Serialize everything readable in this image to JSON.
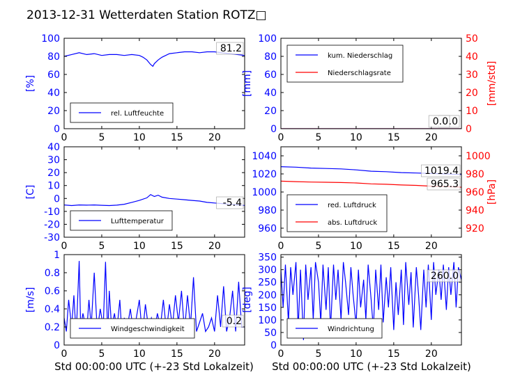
{
  "figure": {
    "title": "2013-12-31 Wetterdaten Station ROTZ□",
    "xlabel": "Std 00:00:00 UTC (+-23 Std Lokalzeit)"
  },
  "colors": {
    "primary": "#0000ff",
    "secondary": "#ff0000",
    "axis": "#000000"
  },
  "chart_data": [
    {
      "id": "humidity",
      "type": "line",
      "title": "",
      "xlabel": "",
      "ylabel": "[%]",
      "xlim": [
        0,
        24
      ],
      "ylim": [
        0,
        100
      ],
      "xticks": [
        0,
        5,
        10,
        15,
        20
      ],
      "yticks": [
        0,
        20,
        40,
        60,
        80,
        100
      ],
      "grid": false,
      "legend": "lower-left",
      "last_value_label": "81.2",
      "series": [
        {
          "name": "rel. Luftfeuchte",
          "color": "#0000ff",
          "x": [
            0,
            1,
            2,
            3,
            4,
            5,
            6,
            7,
            8,
            9,
            10,
            10.5,
            11,
            11.5,
            11.8,
            12,
            12.5,
            13,
            14,
            15,
            16,
            17,
            18,
            19,
            20,
            21,
            22,
            23,
            24
          ],
          "y": [
            80,
            82,
            84,
            82,
            83,
            81,
            82,
            82,
            81,
            82,
            81,
            79,
            76,
            71,
            69,
            72,
            76,
            79,
            83,
            84,
            85,
            85,
            84,
            85,
            85,
            84,
            83,
            82,
            81
          ]
        }
      ]
    },
    {
      "id": "precipitation",
      "type": "line",
      "title": "",
      "xlabel": "",
      "ylabel": "[mm]",
      "ylabel_right": "[mm/std]",
      "xlim": [
        0,
        24
      ],
      "ylim": [
        0,
        100
      ],
      "ylim_right": [
        0,
        50
      ],
      "xticks": [
        0,
        5,
        10,
        15,
        20
      ],
      "yticks": [
        0,
        20,
        40,
        60,
        80,
        100
      ],
      "yticks_right": [
        0,
        10,
        20,
        30,
        40,
        50
      ],
      "grid": false,
      "legend": "upper-left",
      "last_value_label": "0.0",
      "last_value_label_right": "0.0",
      "series": [
        {
          "name": "kum. Niederschlag",
          "color": "#0000ff",
          "axis": "left",
          "x": [
            0,
            24
          ],
          "y": [
            0,
            0
          ]
        },
        {
          "name": "Niederschlagsrate",
          "color": "#ff0000",
          "axis": "right",
          "x": [
            0,
            24
          ],
          "y": [
            0,
            0
          ]
        }
      ]
    },
    {
      "id": "temperature",
      "type": "line",
      "title": "",
      "xlabel": "",
      "ylabel": "[C]",
      "xlim": [
        0,
        24
      ],
      "ylim": [
        -30,
        40
      ],
      "xticks": [
        0,
        5,
        10,
        15,
        20
      ],
      "yticks": [
        -30,
        -20,
        -10,
        0,
        10,
        20,
        30,
        40
      ],
      "grid": false,
      "legend": "lower-left",
      "last_value_label": "-5.4",
      "series": [
        {
          "name": "Lufttemperatur",
          "color": "#0000ff",
          "x": [
            0,
            1,
            2,
            3,
            4,
            5,
            6,
            7,
            8,
            9,
            10,
            11,
            11.5,
            12,
            12.5,
            13,
            14,
            15,
            16,
            17,
            18,
            19,
            20,
            21,
            22,
            23,
            24
          ],
          "y": [
            -5,
            -5.5,
            -5,
            -5.2,
            -5,
            -5.3,
            -5.5,
            -5.2,
            -4.5,
            -3,
            -1.5,
            0.5,
            3,
            1.5,
            2.5,
            1,
            0,
            -0.5,
            -1,
            -1.5,
            -2,
            -3,
            -3.5,
            -4,
            -4.5,
            -5,
            -5.4
          ]
        }
      ]
    },
    {
      "id": "pressure",
      "type": "line",
      "title": "",
      "xlabel": "",
      "ylabel_right": "[hPa]",
      "xlim": [
        0,
        24
      ],
      "ylim": [
        950,
        1050
      ],
      "ylim_right": [
        910,
        1010
      ],
      "xticks": [
        0,
        5,
        10,
        15,
        20
      ],
      "yticks": [
        960,
        980,
        1000,
        1020,
        1040
      ],
      "yticks_right": [
        920,
        940,
        960,
        980,
        1000
      ],
      "grid": false,
      "legend": "lower-left",
      "last_value_label": "1019.4",
      "last_value_label_right": "965.3",
      "series": [
        {
          "name": "red. Luftdruck",
          "color": "#0000ff",
          "axis": "left",
          "x": [
            0,
            2,
            4,
            6,
            8,
            10,
            12,
            14,
            16,
            18,
            20,
            22,
            24
          ],
          "y": [
            1028,
            1027.5,
            1026.5,
            1026,
            1025.5,
            1024.5,
            1023,
            1022.5,
            1021.5,
            1021,
            1020.5,
            1020,
            1019.4
          ]
        },
        {
          "name": "abs. Luftdruck",
          "color": "#ff0000",
          "axis": "right",
          "x": [
            0,
            2,
            4,
            6,
            8,
            10,
            12,
            14,
            16,
            18,
            20,
            22,
            24
          ],
          "y": [
            972,
            971.5,
            971,
            970.8,
            970.5,
            970,
            969,
            968.5,
            967.8,
            967.3,
            966.5,
            966,
            965.3
          ]
        }
      ]
    },
    {
      "id": "wind-speed",
      "type": "line",
      "title": "",
      "xlabel": "",
      "ylabel": "[m/s]",
      "xlim": [
        0,
        24
      ],
      "ylim": [
        0,
        1.0
      ],
      "xticks": [
        0,
        5,
        10,
        15,
        20
      ],
      "yticks": [
        0,
        0.2,
        0.4,
        0.6,
        0.8,
        1.0
      ],
      "grid": false,
      "legend": "lower-center",
      "last_value_label": "0.2",
      "series": [
        {
          "name": "Windgeschwindigkeit",
          "color": "#0000ff",
          "x": [
            0,
            0.3,
            0.6,
            1,
            1.3,
            1.6,
            2,
            2.2,
            2.5,
            3,
            3.3,
            3.6,
            4,
            4.4,
            4.8,
            5.2,
            5.5,
            5.8,
            6,
            6.3,
            6.7,
            7,
            7.4,
            7.7,
            8,
            8.4,
            8.8,
            9.2,
            9.6,
            10,
            10.4,
            10.8,
            11.2,
            11.6,
            12,
            12.4,
            12.8,
            13.2,
            13.6,
            14,
            14.4,
            14.8,
            15.2,
            15.6,
            16,
            16.4,
            16.8,
            17.2,
            17.6,
            18,
            18.4,
            18.8,
            19.2,
            19.6,
            20,
            20.4,
            20.8,
            21.2,
            21.6,
            22,
            22.4,
            22.8,
            23.2,
            23.6,
            24
          ],
          "y": [
            0.3,
            0.15,
            0.5,
            0.2,
            0.55,
            0.1,
            0.93,
            0.2,
            0.35,
            0.15,
            0.5,
            0.2,
            0.8,
            0.15,
            0.4,
            0.2,
            0.92,
            0.1,
            0.6,
            0.2,
            0.35,
            0.15,
            0.5,
            0.1,
            0.3,
            0.2,
            0.4,
            0.15,
            0.3,
            0.5,
            0.1,
            0.45,
            0.2,
            0.3,
            0.15,
            0.35,
            0.2,
            0.5,
            0.15,
            0.45,
            0.2,
            0.55,
            0.25,
            0.6,
            0.15,
            0.55,
            0.2,
            0.75,
            0.15,
            0.25,
            0.35,
            0.15,
            0.2,
            0.3,
            0.15,
            0.55,
            0.2,
            0.65,
            0.15,
            0.3,
            0.6,
            0.15,
            0.7,
            0.2,
            0.2
          ]
        }
      ]
    },
    {
      "id": "wind-direction",
      "type": "line",
      "title": "",
      "xlabel": "",
      "ylabel": "[deg]",
      "xlim": [
        0,
        24
      ],
      "ylim": [
        0,
        360
      ],
      "xticks": [
        0,
        5,
        10,
        15,
        20
      ],
      "yticks": [
        0,
        50,
        100,
        150,
        200,
        250,
        300,
        350
      ],
      "grid": false,
      "legend": "lower-left",
      "last_value_label": "260.0",
      "series": [
        {
          "name": "Windrichtung",
          "color": "#0000ff",
          "x": [
            0,
            0.3,
            0.6,
            1,
            1.3,
            1.6,
            2,
            2.3,
            2.6,
            3,
            3.3,
            3.6,
            4,
            4.3,
            4.6,
            5,
            5.3,
            5.6,
            6,
            6.3,
            6.6,
            7,
            7.3,
            7.6,
            8,
            8.3,
            8.6,
            9,
            9.3,
            9.6,
            10,
            10.3,
            10.6,
            11,
            11.3,
            11.6,
            12,
            12.3,
            12.6,
            13,
            13.3,
            13.6,
            14,
            14.3,
            14.6,
            15,
            15.3,
            15.6,
            16,
            16.3,
            16.6,
            17,
            17.3,
            17.6,
            18,
            18.3,
            18.6,
            19,
            19.3,
            19.6,
            20,
            20.3,
            20.6,
            21,
            21.3,
            21.6,
            22,
            22.3,
            22.6,
            23,
            23.3,
            23.6,
            24
          ],
          "y": [
            300,
            150,
            320,
            90,
            310,
            200,
            330,
            60,
            300,
            20,
            320,
            180,
            310,
            100,
            330,
            250,
            90,
            320,
            140,
            310,
            60,
            320,
            180,
            300,
            100,
            330,
            250,
            120,
            310,
            200,
            80,
            300,
            150,
            260,
            100,
            320,
            180,
            60,
            300,
            140,
            320,
            90,
            270,
            150,
            310,
            60,
            250,
            120,
            300,
            80,
            330,
            160,
            290,
            70,
            310,
            200,
            60,
            300,
            150,
            320,
            100,
            330,
            200,
            300,
            180,
            320,
            140,
            310,
            200,
            330,
            150,
            310,
            260
          ]
        }
      ]
    }
  ]
}
